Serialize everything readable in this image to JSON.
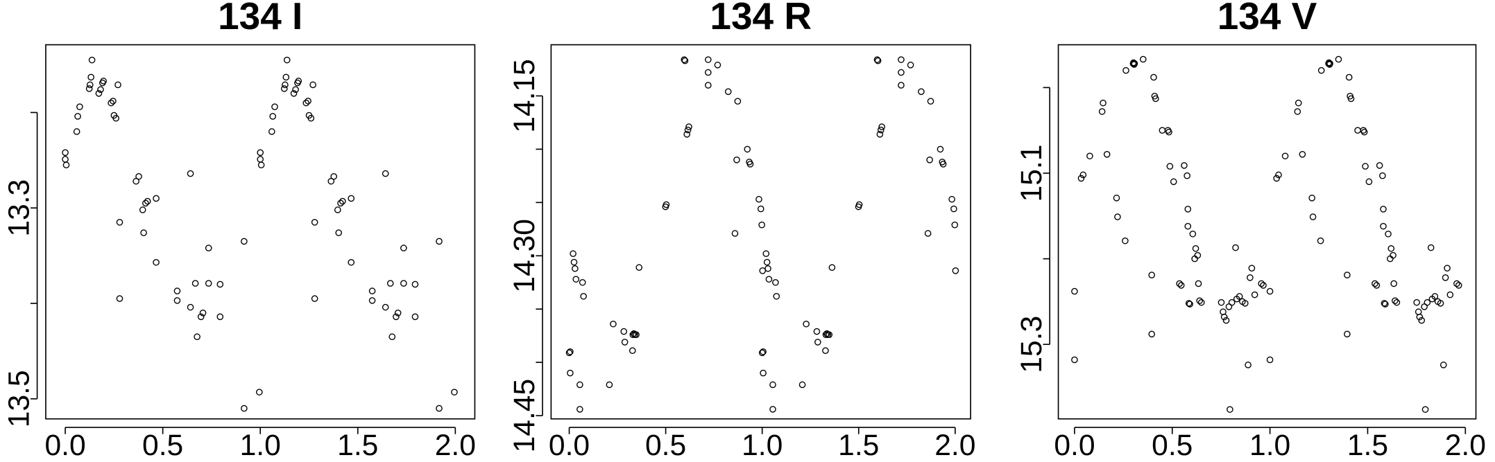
{
  "chart_data": [
    {
      "type": "scatter",
      "title": "134 I",
      "color": "#000000",
      "x": [
        0,
        0,
        0.005,
        0.059,
        0.064,
        0.074,
        0.123,
        0.127,
        0.132,
        0.137,
        0.172,
        0.181,
        0.191,
        0.196,
        0.235,
        0.245,
        0.25,
        0.26,
        0.27,
        0.279,
        0.279,
        0.363,
        0.377,
        0.397,
        0.402,
        0.412,
        0.422,
        0.466,
        0.466,
        0.574,
        0.574,
        0.642,
        0.642,
        0.667,
        0.676,
        0.696,
        0.706,
        0.735,
        0.735,
        0.794,
        0.794,
        0.917,
        0.917,
        0.995,
        1,
        1,
        1.005,
        1.059,
        1.064,
        1.074,
        1.123,
        1.127,
        1.132,
        1.137,
        1.172,
        1.181,
        1.191,
        1.196,
        1.235,
        1.245,
        1.25,
        1.26,
        1.27,
        1.279,
        1.279,
        1.363,
        1.377,
        1.397,
        1.402,
        1.412,
        1.422,
        1.466,
        1.466,
        1.574,
        1.574,
        1.642,
        1.642,
        1.667,
        1.676,
        1.696,
        1.706,
        1.735,
        1.735,
        1.794,
        1.794,
        1.917,
        1.917,
        1.995
      ],
      "y": [
        13.249,
        13.242,
        13.255,
        13.22,
        13.204,
        13.194,
        13.175,
        13.171,
        13.163,
        13.145,
        13.18,
        13.176,
        13.169,
        13.167,
        13.19,
        13.188,
        13.203,
        13.206,
        13.171,
        13.315,
        13.395,
        13.272,
        13.267,
        13.302,
        13.326,
        13.295,
        13.293,
        13.29,
        13.357,
        13.387,
        13.397,
        13.264,
        13.404,
        13.379,
        13.435,
        13.414,
        13.41,
        13.379,
        13.342,
        13.38,
        13.414,
        13.335,
        13.51,
        13.493,
        13.249,
        13.242,
        13.255,
        13.22,
        13.204,
        13.194,
        13.175,
        13.171,
        13.163,
        13.145,
        13.18,
        13.176,
        13.169,
        13.167,
        13.19,
        13.188,
        13.203,
        13.206,
        13.171,
        13.315,
        13.395,
        13.272,
        13.267,
        13.302,
        13.326,
        13.295,
        13.293,
        13.29,
        13.357,
        13.387,
        13.397,
        13.264,
        13.404,
        13.379,
        13.435,
        13.414,
        13.41,
        13.379,
        13.342,
        13.38,
        13.414,
        13.335,
        13.51,
        13.493
      ],
      "xlim": [
        -0.1,
        2.1
      ],
      "ylim": [
        13.521,
        13.129
      ],
      "xticks": [
        {
          "value": 0,
          "label": "0.0"
        },
        0.5,
        {
          "value": 1,
          "label": "1.0"
        },
        1.5,
        {
          "value": 2,
          "label": "2.0"
        }
      ],
      "yticks": [
        {
          "value": 13.2,
          "label": null
        },
        13.3,
        {
          "value": 13.4,
          "label": null
        },
        13.5
      ]
    },
    {
      "type": "scatter",
      "title": "134 R",
      "color": "#000000",
      "x": [
        0,
        0.005,
        0.005,
        0.02,
        0.025,
        0.03,
        0.035,
        0.055,
        0.055,
        0.069,
        0.074,
        0.208,
        0.228,
        0.283,
        0.288,
        0.328,
        0.33,
        0.335,
        0.34,
        0.347,
        0.362,
        0.499,
        0.503,
        0.596,
        0.6,
        0.61,
        0.615,
        0.62,
        0.72,
        0.72,
        0.72,
        0.769,
        0.824,
        0.859,
        0.868,
        0.873,
        0.923,
        0.933,
        0.938,
        0.983,
        0.993,
        0.998,
        1.002,
        1,
        1.005,
        1.005,
        1.02,
        1.025,
        1.03,
        1.035,
        1.055,
        1.055,
        1.069,
        1.074,
        1.208,
        1.228,
        1.283,
        1.288,
        1.328,
        1.33,
        1.335,
        1.34,
        1.347,
        1.362,
        1.499,
        1.503,
        1.596,
        1.6,
        1.61,
        1.615,
        1.62,
        1.72,
        1.72,
        1.72,
        1.769,
        1.824,
        1.859,
        1.868,
        1.873,
        1.923,
        1.933,
        1.938,
        1.983,
        1.993,
        1.998,
        2.002
      ],
      "y": [
        14.391,
        14.39,
        14.41,
        14.298,
        14.306,
        14.312,
        14.322,
        14.421,
        14.444,
        14.325,
        14.338,
        14.421,
        14.364,
        14.371,
        14.381,
        14.389,
        14.374,
        14.373,
        14.374,
        14.374,
        14.311,
        14.254,
        14.252,
        14.116,
        14.117,
        14.186,
        14.182,
        14.179,
        14.116,
        14.128,
        14.14,
        14.121,
        14.146,
        14.279,
        14.21,
        14.155,
        14.2,
        14.212,
        14.214,
        14.247,
        14.256,
        14.271,
        14.314,
        14.391,
        14.39,
        14.41,
        14.298,
        14.306,
        14.312,
        14.322,
        14.421,
        14.444,
        14.325,
        14.338,
        14.421,
        14.364,
        14.371,
        14.381,
        14.389,
        14.374,
        14.373,
        14.374,
        14.374,
        14.311,
        14.254,
        14.252,
        14.116,
        14.117,
        14.186,
        14.182,
        14.179,
        14.116,
        14.128,
        14.14,
        14.121,
        14.146,
        14.279,
        14.21,
        14.155,
        14.2,
        14.212,
        14.214,
        14.247,
        14.256,
        14.271,
        14.314
      ],
      "xlim": [
        -0.094,
        2.08
      ],
      "ylim": [
        14.453,
        14.102
      ],
      "xticks": [
        {
          "value": 0,
          "label": "0.0"
        },
        0.5,
        {
          "value": 1,
          "label": "1.0"
        },
        1.5,
        {
          "value": 2,
          "label": "2.0"
        }
      ],
      "yticks": [
        14.15,
        {
          "value": 14.2,
          "label": null
        },
        {
          "value": 14.25,
          "label": null
        },
        {
          "value": 14.3,
          "label": "14.30"
        },
        {
          "value": 14.35,
          "label": null
        },
        {
          "value": 14.4,
          "label": null
        },
        14.45
      ]
    },
    {
      "type": "scatter",
      "title": "134 V",
      "color": "#000000",
      "x": [
        0,
        0,
        0.034,
        0.044,
        0.078,
        0.141,
        0.146,
        0.166,
        0.215,
        0.22,
        0.259,
        0.263,
        0.3,
        0.302,
        0.305,
        0.307,
        0.351,
        0.395,
        0.395,
        0.405,
        0.41,
        0.415,
        0.449,
        0.478,
        0.483,
        0.488,
        0.507,
        0.537,
        0.546,
        0.561,
        0.576,
        0.58,
        0.58,
        0.585,
        0.59,
        0.605,
        0.615,
        0.62,
        0.63,
        0.634,
        0.64,
        0.649,
        0.751,
        0.76,
        0.766,
        0.776,
        0.79,
        0.795,
        0.805,
        0.824,
        0.83,
        0.844,
        0.859,
        0.873,
        0.888,
        0.898,
        0.907,
        0.922,
        0.956,
        0.966,
        1,
        1,
        1.034,
        1.044,
        1.078,
        1.141,
        1.146,
        1.166,
        1.215,
        1.22,
        1.259,
        1.263,
        1.3,
        1.302,
        1.305,
        1.307,
        1.351,
        1.395,
        1.395,
        1.405,
        1.41,
        1.415,
        1.449,
        1.478,
        1.483,
        1.488,
        1.507,
        1.537,
        1.546,
        1.561,
        1.576,
        1.58,
        1.58,
        1.585,
        1.59,
        1.605,
        1.615,
        1.62,
        1.63,
        1.634,
        1.64,
        1.649,
        1.751,
        1.76,
        1.766,
        1.776,
        1.79,
        1.795,
        1.805,
        1.824,
        1.83,
        1.844,
        1.859,
        1.873,
        1.888,
        1.898,
        1.907,
        1.922,
        1.956,
        1.966
      ],
      "y": [
        15.238,
        15.318,
        15.106,
        15.102,
        15.08,
        15.028,
        15.018,
        15.078,
        15.129,
        15.151,
        15.179,
        14.98,
        14.972,
        14.971,
        14.973,
        14.972,
        14.967,
        15.219,
        15.288,
        14.988,
        15.01,
        15.013,
        15.05,
        15.05,
        15.052,
        15.092,
        15.11,
        15.229,
        15.231,
        15.091,
        15.103,
        15.142,
        15.162,
        15.252,
        15.253,
        15.171,
        15.2,
        15.188,
        15.196,
        15.229,
        15.249,
        15.251,
        15.251,
        15.262,
        15.268,
        15.272,
        15.256,
        15.376,
        15.251,
        15.187,
        15.247,
        15.244,
        15.25,
        15.252,
        15.324,
        15.222,
        15.211,
        15.242,
        15.229,
        15.231,
        15.238,
        15.318,
        15.106,
        15.102,
        15.08,
        15.028,
        15.018,
        15.078,
        15.129,
        15.151,
        15.179,
        14.98,
        14.972,
        14.971,
        14.973,
        14.972,
        14.967,
        15.219,
        15.288,
        14.988,
        15.01,
        15.013,
        15.05,
        15.05,
        15.052,
        15.092,
        15.11,
        15.229,
        15.231,
        15.091,
        15.103,
        15.142,
        15.162,
        15.252,
        15.253,
        15.171,
        15.2,
        15.188,
        15.196,
        15.229,
        15.249,
        15.251,
        15.251,
        15.262,
        15.268,
        15.272,
        15.256,
        15.376,
        15.251,
        15.187,
        15.247,
        15.244,
        15.25,
        15.252,
        15.324,
        15.222,
        15.211,
        15.242,
        15.229,
        15.231
      ],
      "xlim": [
        -0.083,
        2.054
      ],
      "ylim": [
        15.387,
        14.95
      ],
      "xticks": [
        {
          "value": 0,
          "label": "0.0"
        },
        0.5,
        {
          "value": 1,
          "label": "1.0"
        },
        1.5,
        {
          "value": 2,
          "label": "2.0"
        }
      ],
      "yticks": [
        {
          "value": 15.0,
          "label": null
        },
        15.1,
        {
          "value": 15.2,
          "label": null
        },
        15.3
      ]
    }
  ]
}
